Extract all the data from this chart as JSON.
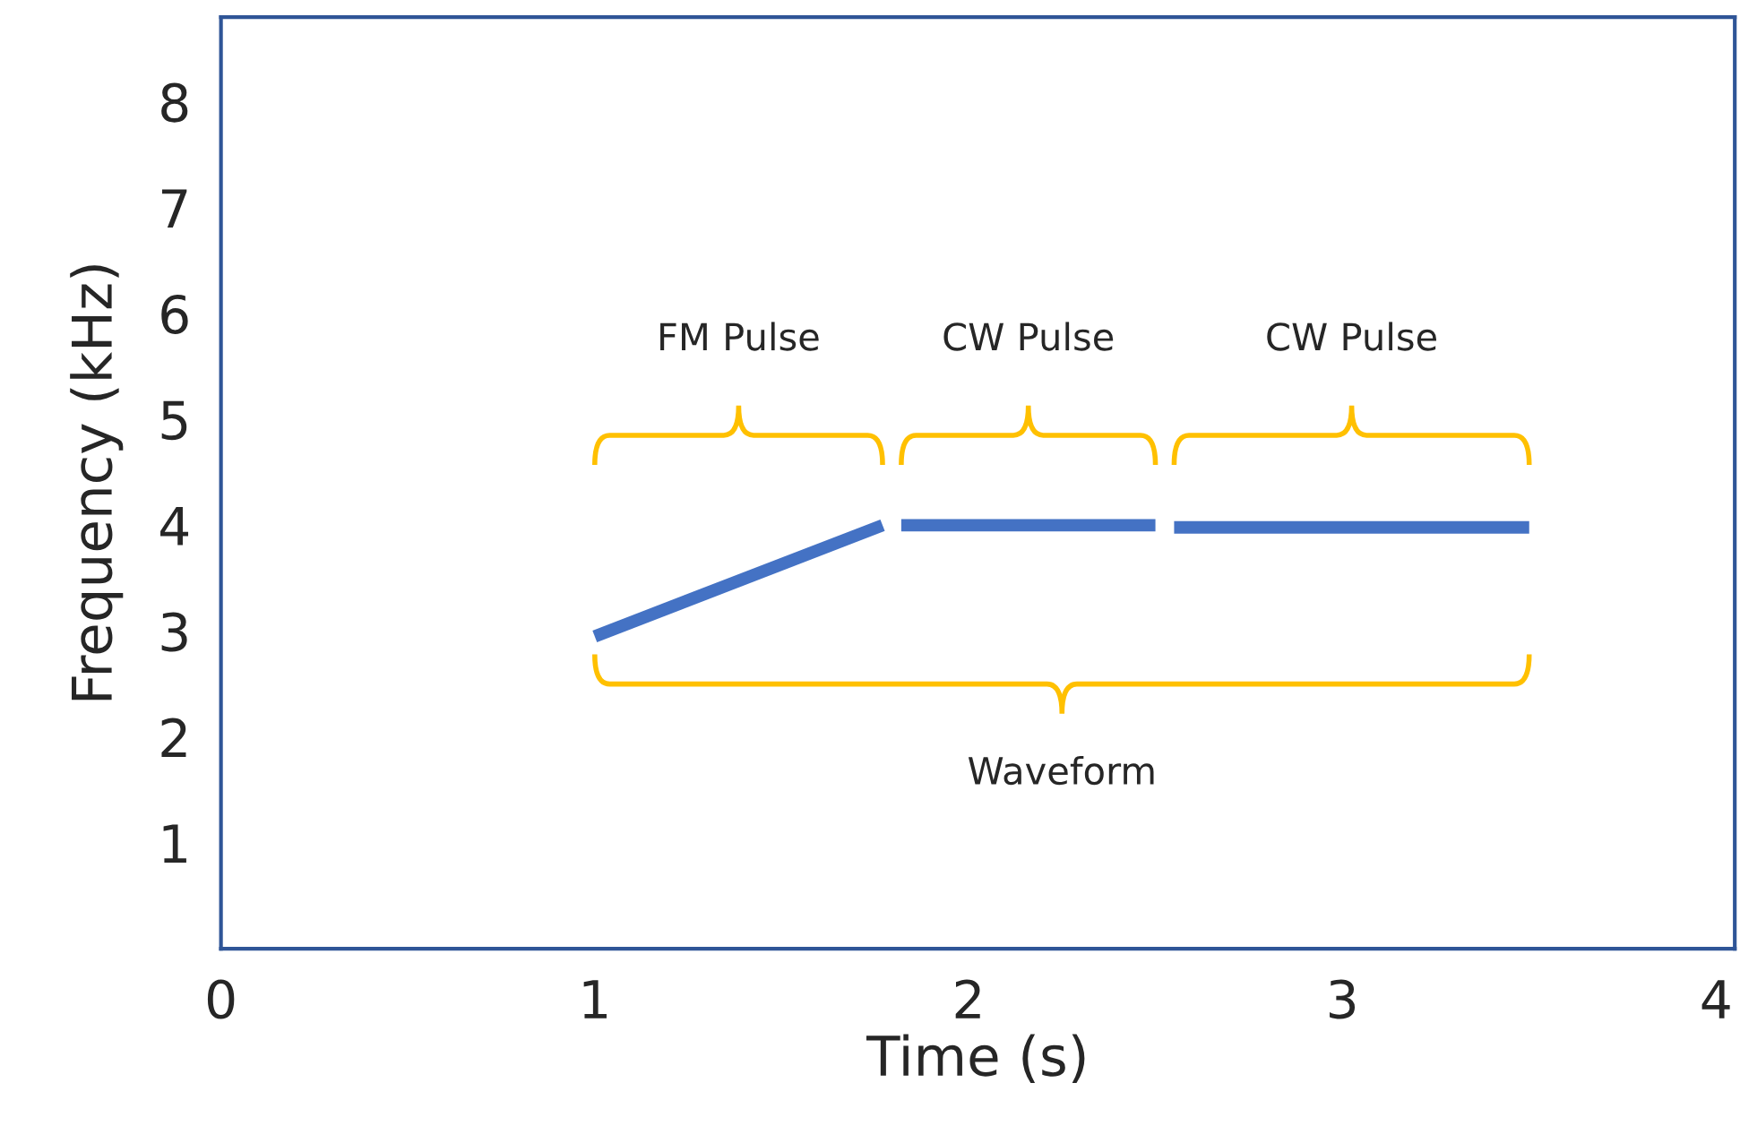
{
  "chart_data": {
    "type": "line",
    "xlabel": "Time (s)",
    "ylabel": "Frequency (kHz)",
    "xlim": [
      0,
      4.05
    ],
    "ylim": [
      0,
      8.8
    ],
    "xticks": [
      0,
      1,
      2,
      3,
      4
    ],
    "yticks": [
      1,
      2,
      3,
      4,
      5,
      6,
      7,
      8
    ],
    "series": [
      {
        "color": "#4472c4",
        "x": [
          1.0,
          1.77
        ],
        "values": [
          2.95,
          4.0
        ]
      },
      {
        "color": "#4472c4",
        "x": [
          1.82,
          2.5
        ],
        "values": [
          4.0,
          4.0
        ]
      },
      {
        "color": "#4472c4",
        "x": [
          2.55,
          3.5
        ],
        "values": [
          3.98,
          3.98
        ]
      }
    ],
    "annotations": [
      "FM Pulse",
      "CW Pulse",
      "CW Pulse",
      "Waveform"
    ],
    "grid": false,
    "legend": false
  }
}
